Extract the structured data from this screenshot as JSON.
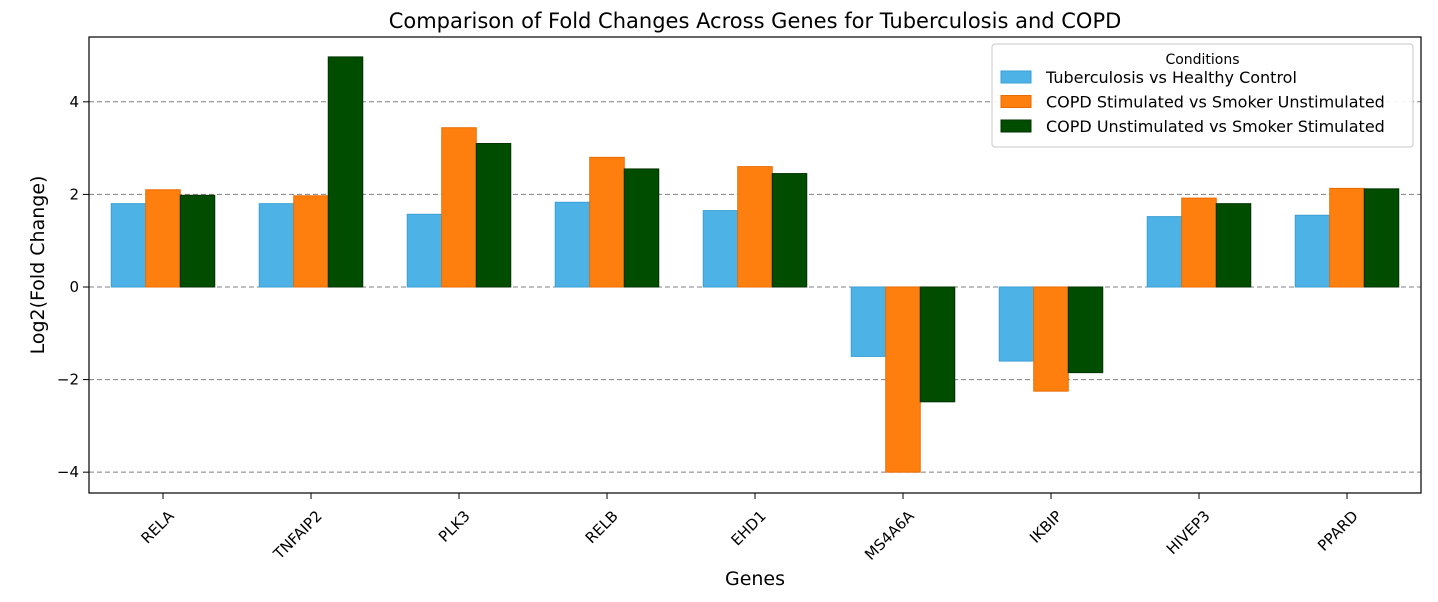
{
  "chart_data": {
    "type": "bar",
    "title": "Comparison of Fold Changes Across Genes for Tuberculosis and COPD",
    "xlabel": "Genes",
    "ylabel": "Log2(Fold Change)",
    "categories": [
      "RELA",
      "TNFAIP2",
      "PLK3",
      "RELB",
      "EHD1",
      "MS4A6A",
      "IKBIP",
      "HIVEP3",
      "PPARD"
    ],
    "series": [
      {
        "name": "Tuberculosis vs Healthy Control",
        "color": "#4db3e6",
        "edge": "#3a9fd6",
        "values": [
          1.8,
          1.8,
          1.57,
          1.83,
          1.65,
          -1.5,
          -1.6,
          1.52,
          1.55
        ]
      },
      {
        "name": "COPD Stimulated vs Smoker Unstimulated",
        "color": "#ff7f0e",
        "edge": "#e96a00",
        "values": [
          2.1,
          1.97,
          3.44,
          2.8,
          2.6,
          -4.0,
          -2.25,
          1.92,
          2.13
        ]
      },
      {
        "name": "COPD Unstimulated vs Smoker Stimulated",
        "color": "#004d00",
        "edge": "#003300",
        "values": [
          1.98,
          4.97,
          3.1,
          2.55,
          2.45,
          -2.48,
          -1.85,
          1.8,
          2.12
        ]
      }
    ],
    "yticks": [
      -4,
      -2,
      0,
      2,
      4
    ],
    "ytick_labels": [
      "−4",
      "−2",
      "0",
      "2",
      "4"
    ],
    "ylim": [
      -4.45,
      5.4
    ],
    "grid": "horizontal dashed",
    "legend": {
      "title": "Conditions",
      "placement": "top-right"
    }
  }
}
